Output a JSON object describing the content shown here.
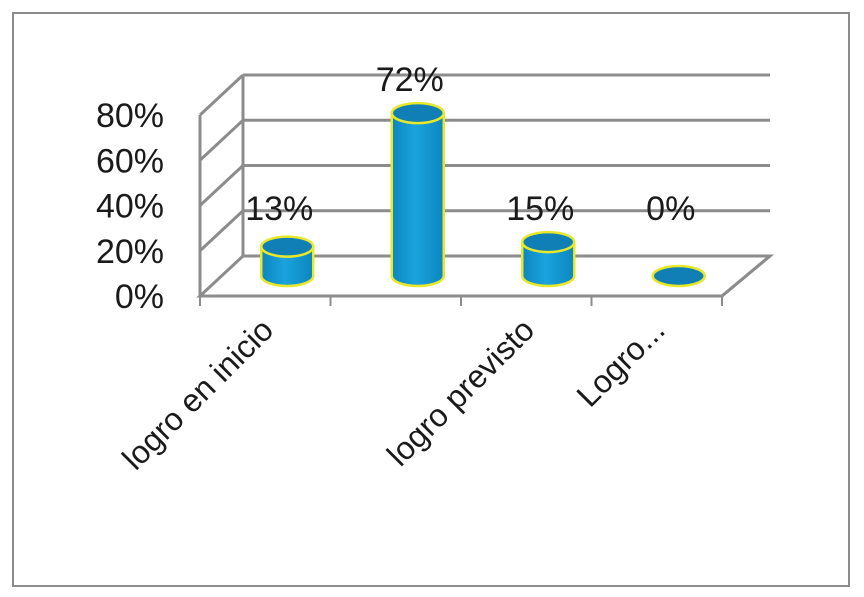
{
  "chart_data": {
    "type": "bar",
    "style": "3d-cylinder",
    "categories": [
      "logro en inicio",
      "",
      "logro previsto",
      "Logro..."
    ],
    "values": [
      13,
      72,
      15,
      0
    ],
    "data_labels": [
      "13%",
      "72%",
      "15%",
      "0%"
    ],
    "yticks": [
      "0%",
      "20%",
      "40%",
      "60%",
      "80%"
    ],
    "ylim": [
      0,
      80
    ],
    "grid": true,
    "legend": "none",
    "colors": {
      "bar": "#1aa3dd",
      "bar_top": "#0f7fb5",
      "bar_outline": "#e8e82a",
      "grid": "#8c8c8c",
      "frame": "#8c8c8c"
    }
  }
}
